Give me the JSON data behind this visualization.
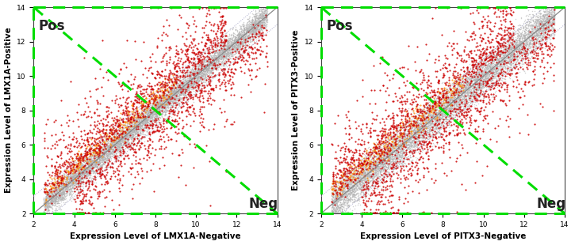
{
  "xlim": [
    2,
    14
  ],
  "ylim": [
    2,
    14
  ],
  "xticks": [
    2,
    4,
    6,
    8,
    10,
    12,
    14
  ],
  "yticks": [
    2,
    4,
    6,
    8,
    10,
    12,
    14
  ],
  "plot1": {
    "xlabel": "Expression Level of LMX1A-Negative",
    "ylabel": "Expression Level of LMX1A-Positive",
    "pos_label": "Pos",
    "neg_label": "Neg"
  },
  "plot2": {
    "xlabel": "Expression Level of PITX3-Negative",
    "ylabel": "Expression Level of PITX3-Positive",
    "pos_label": "Pos",
    "neg_label": "Neg"
  },
  "gray_color": "#b0b0b0",
  "red_color": "#cc0000",
  "orange_color": "#ff8800",
  "dashed_green": "#00dd00",
  "diagonal_color": "#aaaacc",
  "n_gray": 10000,
  "n_red1": 1200,
  "n_red2": 900,
  "n_orange": 400,
  "seed1": 42,
  "seed2": 99,
  "figsize": [
    7.25,
    3.1
  ],
  "dpi": 100,
  "font_size_label": 7.5,
  "font_size_pos_neg": 12
}
